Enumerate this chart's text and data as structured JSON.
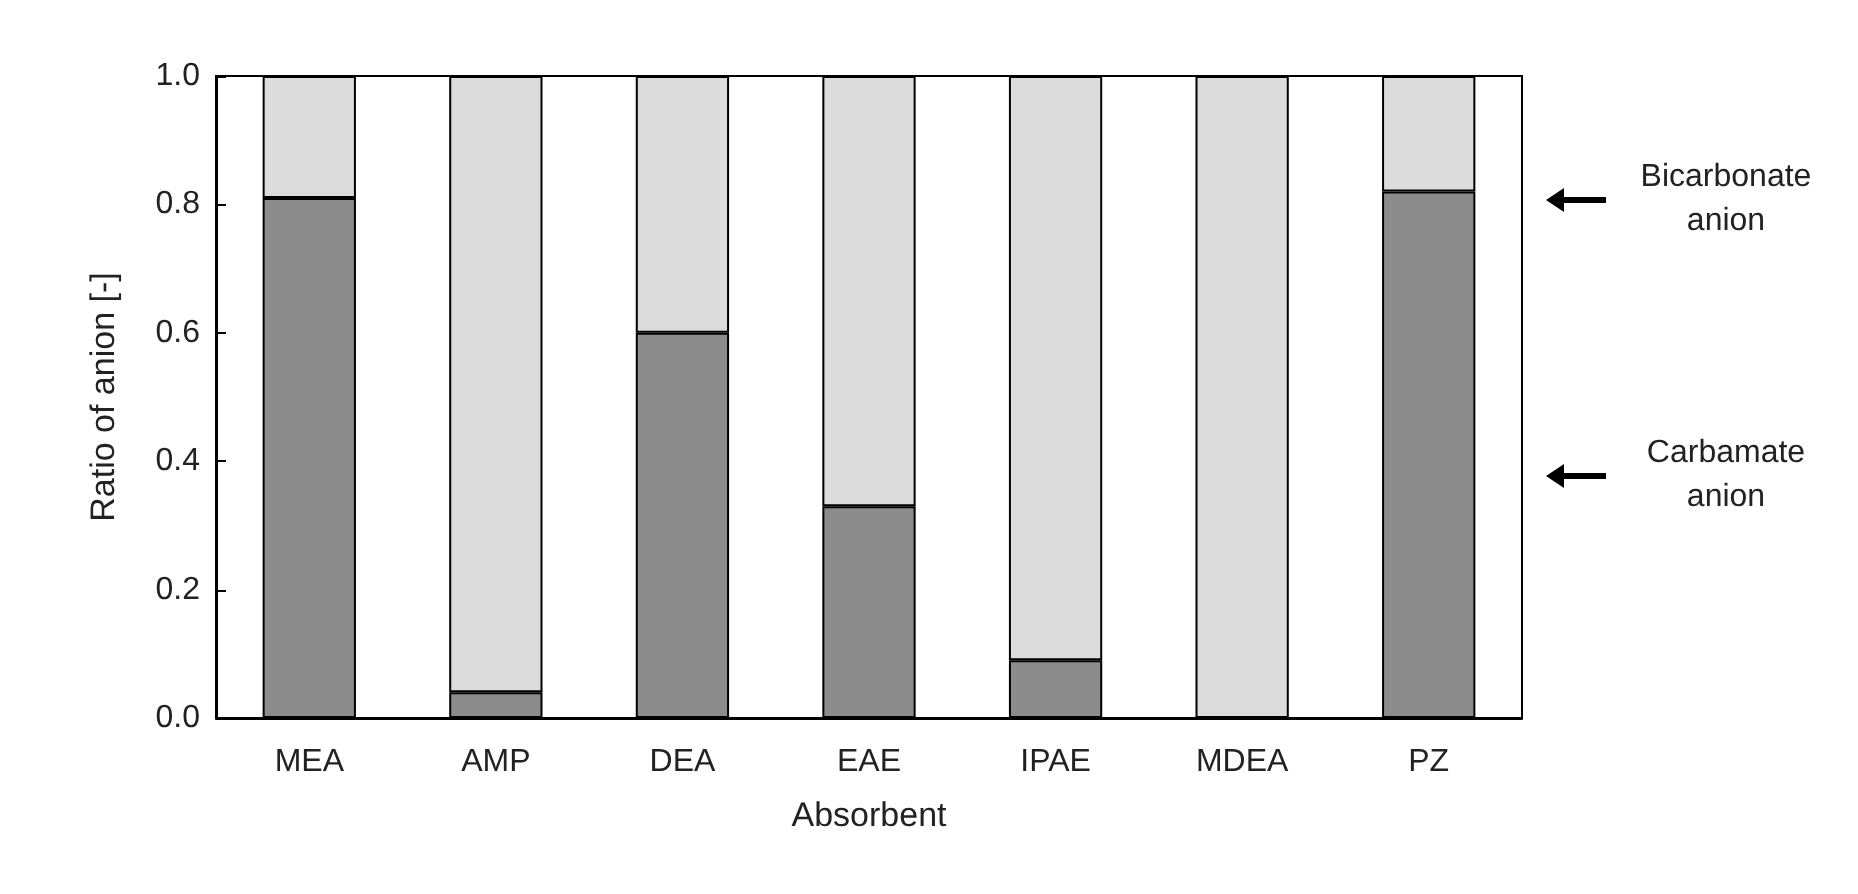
{
  "chart_data": {
    "type": "bar",
    "stacked": true,
    "xlabel": "Absorbent",
    "ylabel": "Ratio of anion [-]",
    "categories": [
      "MEA",
      "AMP",
      "DEA",
      "EAE",
      "IPAE",
      "MDEA",
      "PZ"
    ],
    "series": [
      {
        "name": "Carbamate anion",
        "color": "#8c8c8c",
        "values": [
          0.81,
          0.04,
          0.6,
          0.33,
          0.09,
          0,
          0.82
        ]
      },
      {
        "name": "Bicarbonate anion",
        "color": "#dcdcdc",
        "values": [
          0.19,
          0.96,
          0.4,
          0.67,
          0.91,
          1,
          0.18
        ]
      }
    ],
    "ylim": [
      0,
      1
    ],
    "yticks": [
      {
        "value": 0,
        "label": "0.0"
      },
      {
        "value": 0.2,
        "label": "0.2"
      },
      {
        "value": 0.4,
        "label": "0.4"
      },
      {
        "value": 0.6,
        "label": "0.6"
      },
      {
        "value": 0.8,
        "label": "0.8"
      },
      {
        "value": 1,
        "label": "1.0"
      }
    ],
    "legend": "right",
    "grid": false
  }
}
